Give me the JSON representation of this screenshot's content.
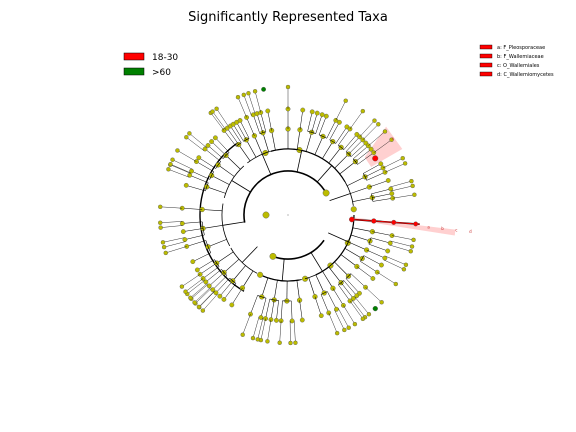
{
  "chart_data": {
    "type": "cladogram",
    "title": "Significantly Represented Taxa",
    "groups": [
      {
        "label": "18-30",
        "color": "#ff0000"
      },
      {
        "label": ">60",
        "color": "#008000"
      }
    ],
    "clade_key": [
      {
        "letter": "a",
        "label": "a: F_Pleosporaceae",
        "color": "#ff0000"
      },
      {
        "letter": "b",
        "label": "b: F_Wallemiaceae",
        "color": "#ff0000"
      },
      {
        "letter": "c",
        "label": "c: O_Wallemiales",
        "color": "#ff0000"
      },
      {
        "letter": "d",
        "label": "d: C_Wallemiomycetes",
        "color": "#ff0000"
      }
    ],
    "clade_letters": [
      "a",
      "b",
      "c",
      "d"
    ],
    "node_color": "#bcbc00",
    "grid": false
  }
}
